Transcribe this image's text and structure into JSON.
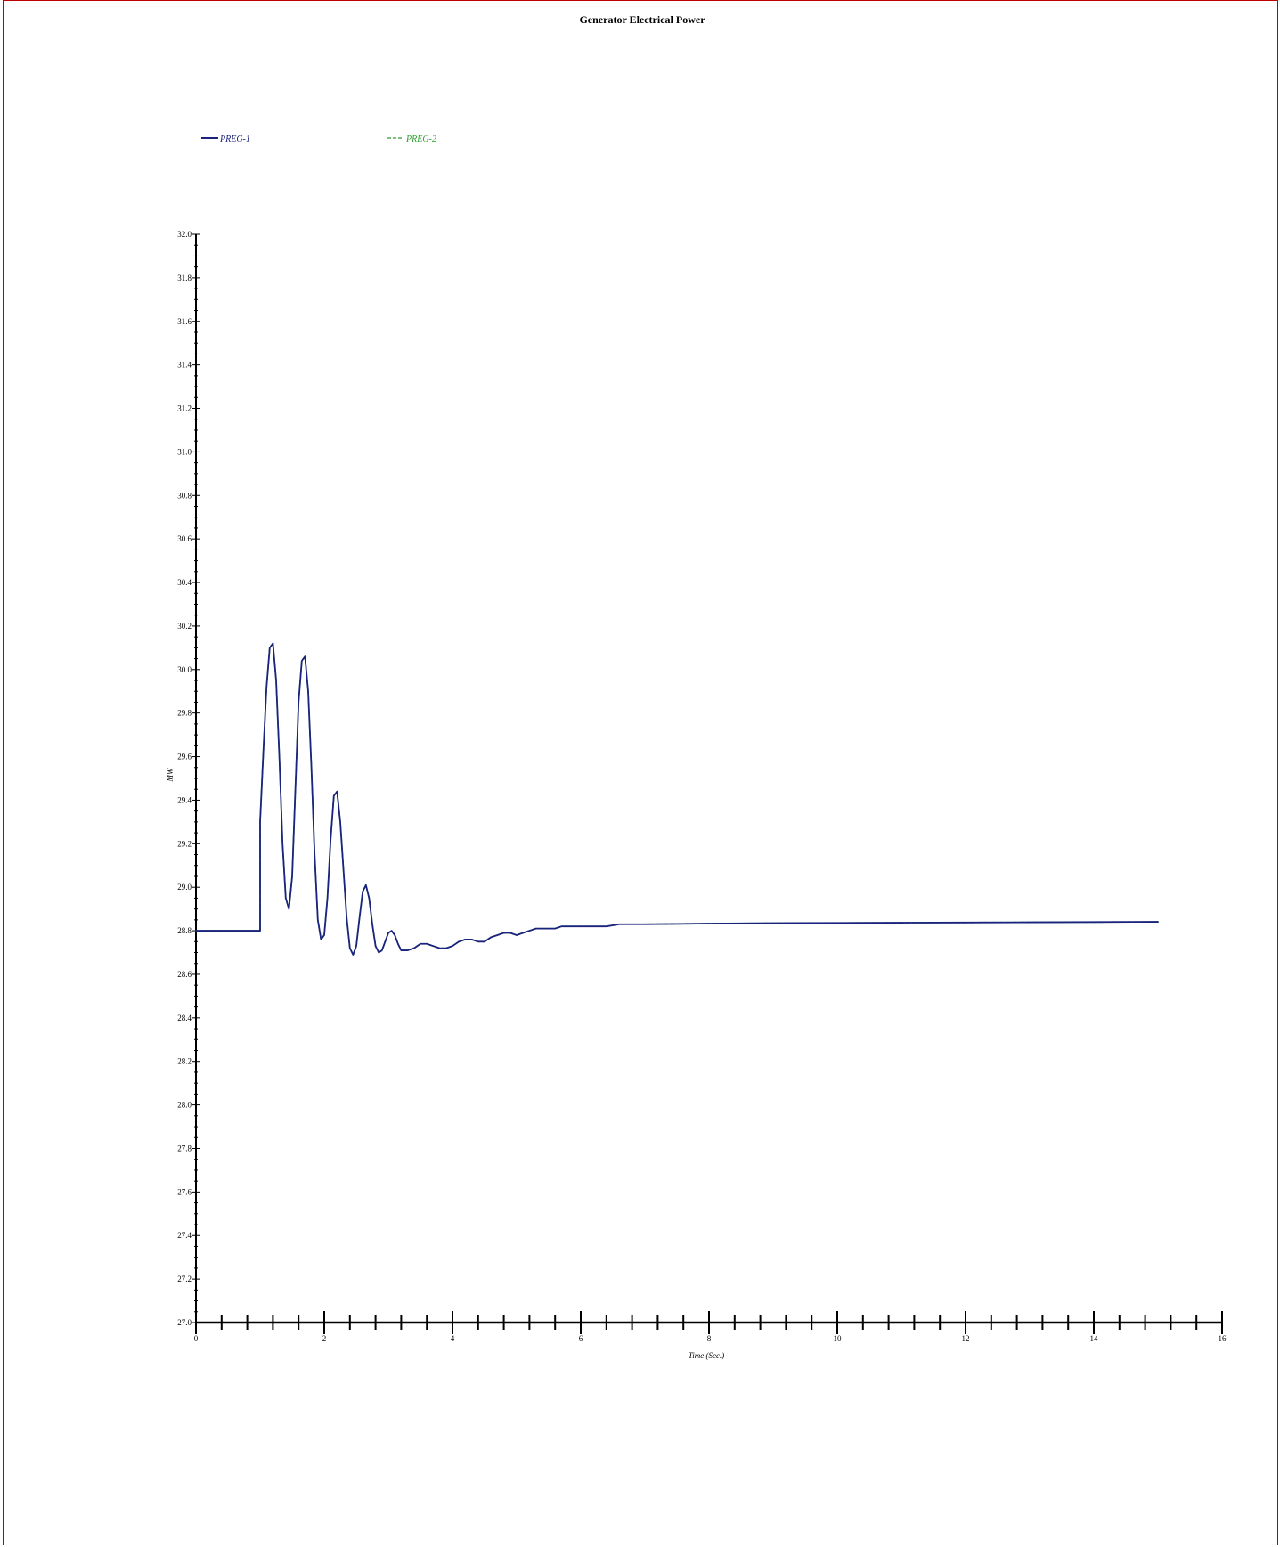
{
  "chart_data": {
    "type": "line",
    "title": "Generator Electrical Power",
    "xlabel": "Time (Sec.)",
    "ylabel": "MW",
    "xlim": [
      0,
      16
    ],
    "ylim": [
      27.0,
      32.0
    ],
    "x_ticks": [
      0,
      2,
      4,
      6,
      8,
      10,
      12,
      14,
      16
    ],
    "y_ticks": [
      27.0,
      27.2,
      27.4,
      27.6,
      27.8,
      28.0,
      28.2,
      28.4,
      28.6,
      28.8,
      29.0,
      29.2,
      29.4,
      29.6,
      29.8,
      30.0,
      30.2,
      30.4,
      30.6,
      30.8,
      31.0,
      31.2,
      31.4,
      31.6,
      31.8,
      32.0
    ],
    "legend_placement": "top-left",
    "grid": false,
    "series": [
      {
        "name": "PREG-1",
        "color": "#1a237e",
        "style": "solid",
        "x": [
          0,
          1.0,
          1.0,
          1.05,
          1.1,
          1.15,
          1.2,
          1.25,
          1.3,
          1.35,
          1.4,
          1.45,
          1.5,
          1.55,
          1.6,
          1.65,
          1.7,
          1.75,
          1.8,
          1.85,
          1.9,
          1.95,
          2.0,
          2.05,
          2.1,
          2.15,
          2.2,
          2.25,
          2.3,
          2.35,
          2.4,
          2.45,
          2.5,
          2.55,
          2.6,
          2.65,
          2.7,
          2.75,
          2.8,
          2.85,
          2.9,
          2.95,
          3.0,
          3.05,
          3.1,
          3.15,
          3.2,
          3.3,
          3.4,
          3.5,
          3.6,
          3.7,
          3.8,
          3.9,
          4.0,
          4.1,
          4.2,
          4.3,
          4.4,
          4.5,
          4.6,
          4.7,
          4.8,
          4.9,
          5.0,
          5.1,
          5.2,
          5.3,
          5.4,
          5.5,
          5.6,
          5.7,
          5.8,
          5.9,
          6.0,
          6.2,
          6.4,
          6.6,
          6.8,
          7.0,
          8.0,
          9.0,
          10.0,
          11.0,
          12.0,
          13.0,
          14.0,
          15.0
        ],
        "values": [
          28.8,
          28.8,
          29.3,
          29.62,
          29.92,
          30.1,
          30.12,
          29.95,
          29.6,
          29.2,
          28.95,
          28.9,
          29.05,
          29.45,
          29.85,
          30.04,
          30.06,
          29.9,
          29.55,
          29.15,
          28.85,
          28.76,
          28.78,
          28.95,
          29.22,
          29.42,
          29.44,
          29.3,
          29.08,
          28.86,
          28.72,
          28.69,
          28.73,
          28.86,
          28.98,
          29.01,
          28.95,
          28.83,
          28.73,
          28.7,
          28.71,
          28.75,
          28.79,
          28.8,
          28.78,
          28.74,
          28.71,
          28.71,
          28.72,
          28.74,
          28.74,
          28.73,
          28.72,
          28.72,
          28.73,
          28.75,
          28.76,
          28.76,
          28.75,
          28.75,
          28.77,
          28.78,
          28.79,
          28.79,
          28.78,
          28.79,
          28.8,
          28.81,
          28.81,
          28.81,
          28.81,
          28.82,
          28.82,
          28.82,
          28.82,
          28.82,
          28.82,
          28.83,
          28.83,
          28.83,
          28.833,
          28.835,
          28.836,
          28.837,
          28.838,
          28.839,
          28.84,
          28.841
        ]
      },
      {
        "name": "PREG-2",
        "color": "#2e9e2e",
        "style": "dashed",
        "x": [
          0,
          1.0,
          1.0,
          1.05,
          1.1,
          1.15,
          1.2,
          1.25,
          1.3,
          1.35,
          1.4,
          1.45,
          1.5,
          1.55,
          1.6,
          1.65,
          1.7,
          1.75,
          1.8,
          1.85,
          1.9,
          1.95,
          2.0,
          2.05,
          2.1,
          2.15,
          2.2,
          2.25,
          2.3,
          2.35,
          2.4,
          2.45,
          2.5,
          2.55,
          2.6,
          2.65,
          2.7,
          2.75,
          2.8,
          2.85,
          2.9,
          2.95,
          3.0,
          3.05,
          3.1,
          3.15,
          3.2,
          3.3,
          3.4,
          3.5,
          3.6,
          3.7,
          3.8,
          3.9,
          4.0,
          4.1,
          4.2,
          4.3,
          4.4,
          4.5,
          4.6,
          4.7,
          4.8,
          4.9,
          5.0,
          5.1,
          5.2,
          5.3,
          5.4,
          5.5,
          5.6,
          5.7,
          5.8,
          5.9,
          6.0,
          6.2,
          6.4,
          6.6,
          6.8,
          7.0,
          8.0,
          9.0,
          10.0,
          11.0,
          12.0,
          13.0,
          14.0,
          15.0
        ],
        "values": [
          28.8,
          28.8,
          29.3,
          29.62,
          29.92,
          30.1,
          30.12,
          29.95,
          29.6,
          29.2,
          28.95,
          28.9,
          29.05,
          29.45,
          29.85,
          30.04,
          30.06,
          29.9,
          29.55,
          29.15,
          28.85,
          28.76,
          28.78,
          28.95,
          29.22,
          29.42,
          29.44,
          29.3,
          29.08,
          28.86,
          28.72,
          28.69,
          28.73,
          28.86,
          28.98,
          29.01,
          28.95,
          28.83,
          28.73,
          28.7,
          28.71,
          28.75,
          28.79,
          28.8,
          28.78,
          28.74,
          28.71,
          28.71,
          28.72,
          28.74,
          28.74,
          28.73,
          28.72,
          28.72,
          28.73,
          28.75,
          28.76,
          28.76,
          28.75,
          28.75,
          28.77,
          28.78,
          28.79,
          28.79,
          28.78,
          28.79,
          28.8,
          28.81,
          28.81,
          28.81,
          28.81,
          28.82,
          28.82,
          28.82,
          28.82,
          28.82,
          28.82,
          28.83,
          28.83,
          28.83,
          28.833,
          28.835,
          28.836,
          28.837,
          28.838,
          28.839,
          28.84,
          28.841
        ]
      }
    ]
  }
}
